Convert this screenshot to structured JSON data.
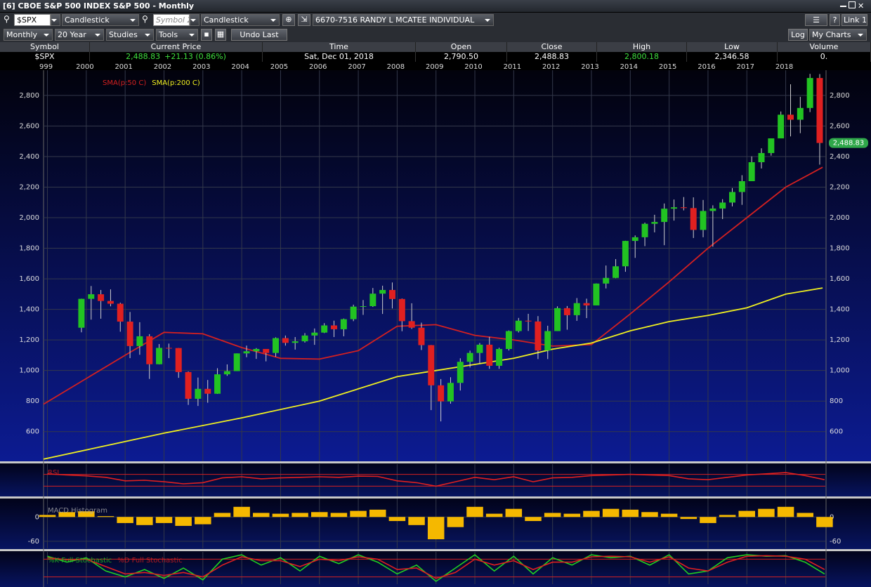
{
  "window": {
    "title": "[6] CBOE S&P 500 INDEX S&P 500 - Monthly"
  },
  "toolbar": {
    "symbol": "$SPX",
    "chart_type": "Candlestick",
    "symbol2": "Symbol 2",
    "chart_type2": "Candlestick",
    "account": "6670-7516 RANDY L MCATEE INDIVIDUAL",
    "link": "Link 1",
    "period": "Monthly",
    "range": "20 Year",
    "studies": "Studies",
    "tools": "Tools",
    "undo": "Undo Last",
    "log": "Log",
    "my_charts": "My Charts"
  },
  "quote": {
    "headers": [
      "Symbol",
      "Current Price",
      "Time",
      "Open",
      "Close",
      "High",
      "Low",
      "Volume"
    ],
    "symbol": "$SPX",
    "current_price": "2,488.83",
    "change": "+21.13 (0.86%)",
    "time": "Sat, Dec 01, 2018",
    "open": "2,790.50",
    "close": "2,488.83",
    "high": "2,800.18",
    "low": "2,346.58",
    "volume": "0."
  },
  "chart_data": [
    {
      "type": "candlestick",
      "xlim": [
        1998.9,
        2019.02
      ],
      "xticks": [
        {
          "value": 1999,
          "label": "999"
        },
        2000,
        2001,
        2002,
        2003,
        2004,
        2005,
        2006,
        2007,
        2008,
        2009,
        2010,
        2011,
        2012,
        2013,
        2014,
        2015,
        2016,
        2017,
        2018
      ],
      "ylim": [
        415,
        2965
      ],
      "yticks": [
        {
          "value": 600,
          "label": "600"
        },
        {
          "value": 800,
          "label": "800"
        },
        {
          "value": 1000,
          "label": "1,000"
        },
        {
          "value": 1200,
          "label": "1,200"
        },
        {
          "value": 1400,
          "label": "1,400"
        },
        {
          "value": 1600,
          "label": "1,600"
        },
        {
          "value": 1800,
          "label": "1,800"
        },
        {
          "value": 2000,
          "label": "2,000"
        },
        {
          "value": 2200,
          "label": "2,200"
        },
        {
          "value": 2400,
          "label": "2,400"
        },
        {
          "value": 2600,
          "label": "2,600"
        },
        {
          "value": 2800,
          "label": "2,800"
        }
      ],
      "grid": true,
      "up_color": "#22c322",
      "down_color": "#e02020",
      "x": [
        1999.875,
        2000.125,
        2000.375,
        2000.625,
        2000.875,
        2001.125,
        2001.375,
        2001.625,
        2001.875,
        2002.125,
        2002.375,
        2002.625,
        2002.875,
        2003.125,
        2003.375,
        2003.625,
        2003.875,
        2004.125,
        2004.375,
        2004.625,
        2004.875,
        2005.125,
        2005.375,
        2005.625,
        2005.875,
        2006.125,
        2006.375,
        2006.625,
        2006.875,
        2007.125,
        2007.375,
        2007.625,
        2007.875,
        2008.125,
        2008.375,
        2008.625,
        2008.875,
        2009.125,
        2009.375,
        2009.625,
        2009.875,
        2010.125,
        2010.375,
        2010.625,
        2010.875,
        2011.125,
        2011.375,
        2011.625,
        2011.875,
        2012.125,
        2012.375,
        2012.625,
        2012.875,
        2013.125,
        2013.375,
        2013.625,
        2013.875,
        2014.125,
        2014.375,
        2014.625,
        2014.875,
        2015.125,
        2015.375,
        2015.625,
        2015.875,
        2016.125,
        2016.375,
        2016.625,
        2016.875,
        2017.125,
        2017.375,
        2017.625,
        2017.875,
        2018.125,
        2018.375,
        2018.625,
        2018.875
      ],
      "open": [
        1280,
        1469,
        1499,
        1455,
        1437,
        1320,
        1160,
        1224,
        1041,
        1148,
        1147,
        990,
        815,
        880,
        848,
        975,
        996,
        1112,
        1126,
        1141,
        1115,
        1212,
        1181,
        1191,
        1229,
        1248,
        1295,
        1270,
        1336,
        1418,
        1421,
        1503,
        1527,
        1468,
        1323,
        1280,
        1166,
        903,
        798,
        919,
        1057,
        1115,
        1169,
        1031,
        1141,
        1258,
        1326,
        1321,
        1131,
        1258,
        1408,
        1362,
        1441,
        1426,
        1569,
        1606,
        1682,
        1848,
        1872,
        1960,
        1972,
        2059,
        2068,
        2063,
        1920,
        2044,
        2060,
        2099,
        2168,
        2239,
        2363,
        2423,
        2519,
        2674,
        2641,
        2718,
        2914
      ],
      "high": [
        1470,
        1553,
        1527,
        1531,
        1444,
        1383,
        1316,
        1238,
        1173,
        1176,
        1147,
        994,
        954,
        938,
        1015,
        1040,
        1112,
        1163,
        1147,
        1141,
        1217,
        1229,
        1219,
        1245,
        1275,
        1310,
        1326,
        1340,
        1431,
        1461,
        1540,
        1555,
        1576,
        1471,
        1440,
        1313,
        1167,
        944,
        956,
        1080,
        1130,
        1180,
        1220,
        1149,
        1262,
        1344,
        1371,
        1356,
        1293,
        1420,
        1422,
        1474,
        1470,
        1570,
        1687,
        1729,
        1849,
        1884,
        1968,
        2019,
        2093,
        2119,
        2135,
        2133,
        2116,
        2081,
        2121,
        2194,
        2278,
        2401,
        2454,
        2519,
        2695,
        2873,
        2791,
        2941,
        2940
      ],
      "low": [
        1250,
        1333,
        1339,
        1420,
        1254,
        1081,
        1103,
        945,
        1040,
        1081,
        952,
        775,
        768,
        789,
        847,
        965,
        996,
        1087,
        1076,
        1060,
        1090,
        1163,
        1137,
        1183,
        1168,
        1245,
        1219,
        1224,
        1323,
        1364,
        1416,
        1370,
        1406,
        1257,
        1272,
        1134,
        741,
        667,
        783,
        869,
        1020,
        1045,
        1011,
        1011,
        1131,
        1249,
        1259,
        1075,
        1075,
        1258,
        1267,
        1325,
        1343,
        1426,
        1537,
        1604,
        1646,
        1737,
        1814,
        1904,
        1820,
        1981,
        2048,
        1867,
        1872,
        1810,
        1991,
        2074,
        2084,
        2245,
        2322,
        2406,
        2520,
        2532,
        2553,
        2691,
        2347
      ],
      "close": [
        1469,
        1499,
        1455,
        1437,
        1320,
        1160,
        1224,
        1041,
        1148,
        1147,
        990,
        815,
        880,
        848,
        975,
        996,
        1112,
        1126,
        1141,
        1115,
        1212,
        1181,
        1191,
        1229,
        1248,
        1295,
        1270,
        1336,
        1418,
        1421,
        1503,
        1527,
        1468,
        1323,
        1280,
        1166,
        903,
        798,
        919,
        1057,
        1115,
        1169,
        1031,
        1141,
        1258,
        1326,
        1321,
        1131,
        1258,
        1408,
        1362,
        1441,
        1426,
        1569,
        1606,
        1682,
        1848,
        1872,
        1960,
        1972,
        2059,
        2068,
        2063,
        1920,
        2044,
        2060,
        2099,
        2168,
        2239,
        2363,
        2423,
        2519,
        2674,
        2641,
        2718,
        2914,
        2489
      ],
      "series": [
        {
          "name": "SMA(p:50 C)",
          "color": "#d42020",
          "x": [
            1998.9,
            2001,
            2002,
            2003,
            2004,
            2005,
            2006,
            2007,
            2008,
            2009,
            2010,
            2011,
            2012,
            2013,
            2014,
            2015,
            2016,
            2017,
            2018,
            2018.95
          ],
          "values": [
            780,
            1100,
            1250,
            1240,
            1150,
            1080,
            1075,
            1130,
            1290,
            1300,
            1230,
            1200,
            1160,
            1170,
            1370,
            1580,
            1800,
            2000,
            2200,
            2330
          ]
        },
        {
          "name": "SMA(p:200 C)",
          "color": "#f0f020",
          "x": [
            1998.9,
            2002,
            2004,
            2006,
            2008,
            2009,
            2010,
            2011,
            2012,
            2013,
            2014,
            2015,
            2016,
            2017,
            2018,
            2018.95
          ],
          "values": [
            420,
            590,
            690,
            800,
            960,
            1000,
            1040,
            1080,
            1140,
            1180,
            1260,
            1320,
            1360,
            1410,
            1500,
            1540
          ]
        }
      ]
    },
    {
      "type": "line",
      "name": "RSI",
      "xlim": [
        1998.9,
        2019.02
      ],
      "ylim": [
        0,
        100
      ],
      "levels": [
        70,
        30
      ],
      "level_color": "#d42020",
      "x": [
        1999,
        1999.5,
        2000,
        2000.5,
        2001,
        2001.5,
        2002,
        2002.5,
        2003,
        2003.5,
        2004,
        2004.5,
        2005,
        2005.5,
        2006,
        2006.5,
        2007,
        2007.5,
        2008,
        2008.5,
        2009,
        2009.5,
        2010,
        2010.5,
        2011,
        2011.5,
        2012,
        2012.5,
        2013,
        2013.5,
        2014,
        2014.5,
        2015,
        2015.5,
        2016,
        2016.5,
        2017,
        2017.5,
        2018,
        2018.5,
        2019
      ],
      "series": [
        {
          "name": "RSI",
          "color": "#e02020",
          "values": [
            72,
            68,
            65,
            60,
            48,
            50,
            45,
            38,
            42,
            58,
            62,
            55,
            58,
            60,
            62,
            60,
            64,
            63,
            48,
            42,
            30,
            45,
            60,
            52,
            62,
            45,
            58,
            60,
            66,
            68,
            70,
            68,
            66,
            55,
            52,
            60,
            68,
            72,
            76,
            66,
            52
          ]
        }
      ]
    },
    {
      "type": "bar",
      "name": "MACD Histogram",
      "xlim": [
        1998.9,
        2019.02
      ],
      "ylim": [
        -74,
        42
      ],
      "yticks": [
        0,
        -60
      ],
      "color": "#f5b800",
      "x": [
        1999,
        1999.5,
        2000,
        2000.5,
        2001,
        2001.5,
        2002,
        2002.5,
        2003,
        2003.5,
        2004,
        2004.5,
        2005,
        2005.5,
        2006,
        2006.5,
        2007,
        2007.5,
        2008,
        2008.5,
        2009,
        2009.5,
        2010,
        2010.5,
        2011,
        2011.5,
        2012,
        2012.5,
        2013,
        2013.5,
        2014,
        2014.5,
        2015,
        2015.5,
        2016,
        2016.5,
        2017,
        2017.5,
        2018,
        2018.5,
        2019
      ],
      "values": [
        5,
        12,
        14,
        2,
        -15,
        -20,
        -15,
        -22,
        -18,
        10,
        25,
        10,
        8,
        10,
        12,
        10,
        15,
        18,
        -10,
        -20,
        -55,
        -25,
        25,
        8,
        20,
        -10,
        10,
        8,
        15,
        20,
        18,
        12,
        8,
        -5,
        -15,
        5,
        15,
        20,
        25,
        10,
        -25
      ]
    },
    {
      "type": "line",
      "xlim": [
        1998.9,
        2019.02
      ],
      "ylim": [
        0,
        100
      ],
      "levels": [
        80,
        20
      ],
      "level_color": "#d42020",
      "x": [
        1999,
        1999.5,
        2000,
        2000.5,
        2001,
        2001.5,
        2002,
        2002.5,
        2003,
        2003.5,
        2004,
        2004.5,
        2005,
        2005.5,
        2006,
        2006.5,
        2007,
        2007.5,
        2008,
        2008.5,
        2009,
        2009.5,
        2010,
        2010.5,
        2011,
        2011.5,
        2012,
        2012.5,
        2013,
        2013.5,
        2014,
        2014.5,
        2015,
        2015.5,
        2016,
        2016.5,
        2017,
        2017.5,
        2018,
        2018.5,
        2019
      ],
      "series": [
        {
          "name": "%K Full Stochastic",
          "color": "#22d022",
          "values": [
            90,
            70,
            85,
            40,
            20,
            45,
            15,
            50,
            10,
            80,
            95,
            60,
            85,
            40,
            90,
            65,
            95,
            70,
            30,
            60,
            5,
            50,
            95,
            40,
            90,
            30,
            85,
            60,
            95,
            85,
            90,
            60,
            95,
            30,
            40,
            85,
            95,
            90,
            92,
            70,
            30
          ]
        },
        {
          "name": "%D Full Stochastic",
          "color": "#e02020",
          "values": [
            85,
            78,
            80,
            55,
            30,
            35,
            25,
            35,
            20,
            60,
            88,
            75,
            75,
            55,
            80,
            75,
            88,
            80,
            45,
            50,
            15,
            35,
            80,
            60,
            75,
            45,
            70,
            70,
            88,
            90,
            88,
            70,
            88,
            50,
            40,
            70,
            90,
            92,
            90,
            80,
            45
          ]
        }
      ]
    }
  ]
}
